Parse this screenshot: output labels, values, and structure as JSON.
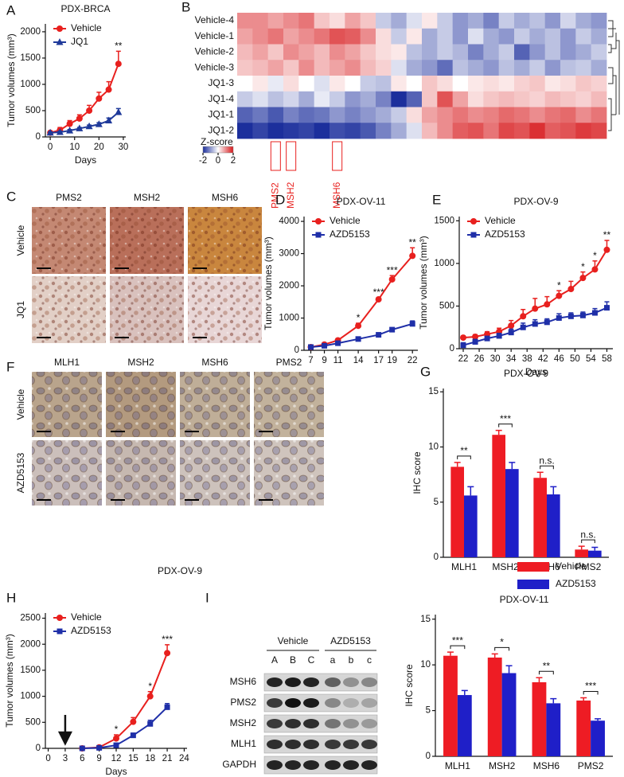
{
  "chart_data": [
    {
      "panel": "A",
      "type": "line",
      "title": "PDX-BRCA",
      "xlabel": "Days",
      "ylabel": "Tumor volumes (mm³)",
      "xlim": [
        -2,
        31
      ],
      "xticks": [
        0,
        10,
        20,
        30
      ],
      "ylim": [
        0,
        2150
      ],
      "yticks": [
        0,
        500,
        1000,
        1500,
        2000
      ],
      "legend": "upper left",
      "series": [
        {
          "name": "Vehicle",
          "color": "#e8201e",
          "marker": "circle",
          "x": [
            0,
            4,
            8,
            12,
            16,
            20,
            24,
            28
          ],
          "values": [
            80,
            130,
            250,
            350,
            500,
            730,
            900,
            1390
          ],
          "errors": [
            20,
            50,
            60,
            70,
            100,
            120,
            150,
            240
          ]
        },
        {
          "name": "JQ1",
          "color": "#1f3a9a",
          "marker": "triangle",
          "x": [
            0,
            4,
            8,
            12,
            16,
            20,
            24,
            28
          ],
          "values": [
            80,
            90,
            120,
            160,
            200,
            240,
            310,
            470
          ],
          "errors": [
            15,
            20,
            20,
            20,
            25,
            30,
            50,
            70
          ]
        }
      ],
      "annotations": [
        {
          "text": "**",
          "series": 0,
          "index": 7
        }
      ]
    },
    {
      "panel": "B",
      "type": "heatmap",
      "rows": [
        "Vehicle-4",
        "Vehicle-1",
        "Vehicle-2",
        "Vehicle-3",
        "JQ1-3",
        "JQ1-4",
        "JQ1-1",
        "JQ1-2"
      ],
      "columns": [
        null,
        null,
        "PMS2",
        "MSH2",
        null,
        null,
        "MSH6",
        null,
        null,
        null,
        null,
        null,
        null,
        null,
        null,
        null,
        null,
        null,
        null,
        null,
        null,
        null,
        null,
        null
      ],
      "values": [
        [
          1,
          1,
          0.8,
          1,
          1.2,
          0.5,
          0.3,
          0.8,
          0.5,
          -0.5,
          -0.8,
          -0.3,
          0.2,
          -0.5,
          -1,
          -0.8,
          -1.2,
          -0.5,
          -0.8,
          -0.6,
          -1,
          -0.4,
          -0.8,
          -1
        ],
        [
          0.8,
          1,
          1.2,
          0.8,
          1,
          1.2,
          1.5,
          1.4,
          1,
          0.3,
          -0.5,
          0.2,
          -0.8,
          -0.5,
          -1,
          -0.3,
          -0.8,
          -1,
          -0.5,
          -0.8,
          -0.6,
          -1,
          -0.5,
          -0.8
        ],
        [
          0.6,
          0.8,
          0.5,
          1,
          0.8,
          0.6,
          1,
          0.8,
          0.5,
          0.3,
          0.2,
          -0.6,
          -0.8,
          -0.5,
          -0.7,
          -1.2,
          -0.8,
          -0.5,
          -1.5,
          -1,
          -0.6,
          -1,
          -0.8,
          -0.5
        ],
        [
          0.5,
          0.6,
          0.8,
          0.5,
          1,
          0.6,
          0.8,
          1,
          0.6,
          0.4,
          -0.3,
          -0.8,
          -1,
          -1.4,
          -0.6,
          -0.8,
          -1,
          -0.6,
          -0.8,
          -0.5,
          -1,
          -0.6,
          -0.5,
          -0.8
        ],
        [
          0,
          0.2,
          -0.2,
          0.3,
          0,
          -0.3,
          0.2,
          0,
          -0.5,
          -0.6,
          0.2,
          0,
          0.5,
          0.3,
          0,
          0.2,
          0.3,
          0.2,
          0.4,
          0.5,
          0.2,
          0.3,
          0.5,
          0.4
        ],
        [
          -0.5,
          -0.3,
          -0.6,
          -0.4,
          -0.8,
          -0.2,
          -0.5,
          -1,
          -0.8,
          -1.2,
          -2,
          -1.5,
          0.5,
          1.5,
          0.8,
          0.3,
          0.5,
          0.6,
          0.5,
          0.4,
          0.6,
          0.5,
          0.4,
          0.6
        ],
        [
          -1.5,
          -1.3,
          -1.6,
          -1.2,
          -1.4,
          -1.3,
          -1,
          -1.2,
          -1,
          -0.8,
          -0.5,
          0.3,
          0.8,
          1,
          1.2,
          1,
          1.1,
          1.3,
          1.2,
          1,
          1.2,
          1.3,
          1,
          1.2
        ],
        [
          -2,
          -1.8,
          -2,
          -1.9,
          -1.8,
          -2,
          -1.7,
          -1.8,
          -1.6,
          -1.2,
          -0.8,
          -0.3,
          0.6,
          1,
          1.4,
          1.5,
          1.2,
          1.6,
          1.5,
          1.8,
          1.4,
          1.5,
          1.7,
          1.6
        ]
      ],
      "zlim": [
        -2,
        2
      ],
      "colors": [
        "#1c2f9c",
        "#ffffff",
        "#d7191c"
      ],
      "colorbar": {
        "label": "Z-score",
        "ticks": [
          -2,
          0,
          2
        ]
      }
    },
    {
      "panel": "D",
      "type": "line",
      "title": "PDX-OV-11",
      "ylabel": "Tumor volumes (mm³)",
      "xlim": [
        6,
        22.8
      ],
      "xticks": [
        7,
        9,
        11,
        14,
        17,
        19,
        22
      ],
      "ylim": [
        0,
        4150
      ],
      "yticks": [
        0,
        1000,
        2000,
        3000,
        4000
      ],
      "legend": "upper left",
      "series": [
        {
          "name": "Vehicle",
          "color": "#e8201e",
          "marker": "circle",
          "x": [
            7,
            9,
            11,
            14,
            17,
            19,
            22
          ],
          "values": [
            100,
            180,
            310,
            760,
            1580,
            2200,
            2930
          ],
          "errors": [
            20,
            30,
            40,
            80,
            60,
            120,
            250
          ]
        },
        {
          "name": "AZD5153",
          "color": "#1f2fa8",
          "marker": "square",
          "x": [
            7,
            9,
            11,
            14,
            17,
            19,
            22
          ],
          "values": [
            100,
            140,
            220,
            350,
            480,
            640,
            820
          ],
          "errors": [
            15,
            20,
            25,
            30,
            40,
            50,
            90
          ]
        }
      ],
      "annotations": [
        {
          "text": "*",
          "series": 0,
          "index": 3
        },
        {
          "text": "***",
          "series": 0,
          "index": 4
        },
        {
          "text": "***",
          "series": 0,
          "index": 5
        },
        {
          "text": "**",
          "series": 0,
          "index": 6
        }
      ]
    },
    {
      "panel": "E",
      "type": "line",
      "title": "PDX-OV-9",
      "xlabel": "Days",
      "ylabel": "Tumor volumes (mm³)",
      "xlim": [
        21,
        59.5
      ],
      "xticks": [
        22,
        26,
        30,
        34,
        38,
        42,
        46,
        50,
        54,
        58
      ],
      "ylim": [
        0,
        1550
      ],
      "yticks": [
        0,
        500,
        1000,
        1500
      ],
      "legend": "upper left",
      "series": [
        {
          "name": "Vehicle",
          "color": "#e8201e",
          "marker": "circle",
          "x": [
            22,
            25,
            28,
            31,
            34,
            37,
            40,
            43,
            46,
            49,
            52,
            55,
            58
          ],
          "values": [
            130,
            140,
            170,
            200,
            270,
            380,
            470,
            520,
            620,
            700,
            830,
            930,
            1160
          ],
          "errors": [
            20,
            25,
            30,
            40,
            60,
            80,
            120,
            90,
            60,
            90,
            70,
            100,
            110
          ]
        },
        {
          "name": "AZD5153",
          "color": "#1f2fa8",
          "marker": "square",
          "x": [
            22,
            25,
            28,
            31,
            34,
            37,
            40,
            43,
            46,
            49,
            52,
            55,
            58
          ],
          "values": [
            40,
            80,
            120,
            150,
            190,
            250,
            290,
            310,
            360,
            380,
            390,
            420,
            480
          ],
          "errors": [
            30,
            30,
            25,
            30,
            40,
            50,
            50,
            40,
            50,
            40,
            40,
            50,
            70
          ]
        }
      ],
      "annotations": [
        {
          "text": "*",
          "series": 0,
          "index": 8
        },
        {
          "text": "*",
          "series": 0,
          "index": 10
        },
        {
          "text": "*",
          "series": 0,
          "index": 11
        },
        {
          "text": "**",
          "series": 0,
          "index": 12
        }
      ]
    },
    {
      "panel": "G",
      "type": "bar",
      "title": "PDX-OV-9",
      "ylabel": "IHC score",
      "categories": [
        "MLH1",
        "MSH2",
        "MSH6",
        "PMS2"
      ],
      "ylim": [
        0,
        15.3
      ],
      "yticks": [
        0,
        5,
        10,
        15
      ],
      "series": [
        {
          "color": "#ee1c24",
          "values": [
            8.2,
            11.1,
            7.2,
            0.7
          ],
          "errors": [
            0.4,
            0.4,
            0.5,
            0.3
          ]
        },
        {
          "color": "#1f1fc8",
          "values": [
            5.6,
            8.0,
            5.7,
            0.6
          ],
          "errors": [
            0.8,
            0.6,
            0.7,
            0.3
          ]
        }
      ],
      "annotations": [
        {
          "text": "**",
          "index": 0
        },
        {
          "text": "***",
          "index": 1
        },
        {
          "text": "n.s.",
          "index": 2
        },
        {
          "text": "n.s.",
          "index": 3
        }
      ]
    },
    {
      "panel": "H",
      "type": "line",
      "xlabel": "Days",
      "ylabel": "Tumor volumes (mm³)",
      "xlim": [
        -0.5,
        24.5
      ],
      "xticks": [
        0,
        3,
        6,
        9,
        12,
        15,
        18,
        21,
        24
      ],
      "ylim": [
        0,
        2600
      ],
      "yticks": [
        0,
        500,
        1000,
        1500,
        2000,
        2500
      ],
      "legend": "upper left",
      "arrow_x": 3,
      "series": [
        {
          "name": "Vehicle",
          "color": "#e8201e",
          "marker": "circle",
          "x": [
            6,
            9,
            12,
            15,
            18,
            21
          ],
          "values": [
            0,
            20,
            190,
            510,
            1000,
            1830
          ],
          "errors": [
            10,
            20,
            70,
            80,
            90,
            160
          ]
        },
        {
          "name": "AZD5153",
          "color": "#1f2fa8",
          "marker": "square",
          "x": [
            6,
            9,
            12,
            15,
            18,
            21
          ],
          "values": [
            0,
            10,
            60,
            250,
            470,
            790
          ],
          "errors": [
            5,
            10,
            30,
            40,
            70,
            70
          ]
        }
      ],
      "annotations": [
        {
          "text": "*",
          "series": 0,
          "index": 2
        },
        {
          "text": "*",
          "series": 0,
          "index": 4
        },
        {
          "text": "***",
          "series": 0,
          "index": 5
        }
      ]
    },
    {
      "type": "bar",
      "title": "PDX-OV-11",
      "ylabel": "IHC score",
      "legend": "outside upper right",
      "categories": [
        "MLH1",
        "MSH2",
        "MSH6",
        "PMS2"
      ],
      "ylim": [
        0,
        15.5
      ],
      "yticks": [
        0,
        5,
        10,
        15
      ],
      "series": [
        {
          "name": "Vehicle",
          "color": "#ee1c24",
          "values": [
            11.0,
            10.8,
            8.1,
            6.1
          ],
          "errors": [
            0.4,
            0.4,
            0.5,
            0.3
          ]
        },
        {
          "name": "AZD5153",
          "color": "#1f1fc8",
          "values": [
            6.7,
            9.1,
            5.8,
            3.9
          ],
          "errors": [
            0.5,
            0.8,
            0.5,
            0.2
          ]
        }
      ],
      "annotations": [
        {
          "text": "***",
          "index": 0
        },
        {
          "text": "*",
          "index": 1
        },
        {
          "text": "**",
          "index": 2
        },
        {
          "text": "***",
          "index": 3
        }
      ]
    }
  ],
  "image_panels": [
    {
      "panel": "C",
      "columns": [
        "PMS2",
        "MSH2",
        "MSH6"
      ],
      "rows": [
        "Vehicle",
        "JQ1"
      ]
    },
    {
      "panel": "F",
      "columns": [
        "MLH1",
        "MSH2",
        "MSH6",
        "PMS2"
      ],
      "rows": [
        "Vehicle",
        "AZD5153"
      ],
      "caption": "PDX-OV-9"
    },
    {
      "panel": "I",
      "groups": [
        "Vehicle",
        "AZD5153"
      ],
      "lanes": [
        "A",
        "B",
        "C",
        "a",
        "b",
        "c"
      ],
      "rows": [
        "MSH6",
        "PMS2",
        "MSH2",
        "MLH1",
        "GAPDH"
      ]
    }
  ]
}
